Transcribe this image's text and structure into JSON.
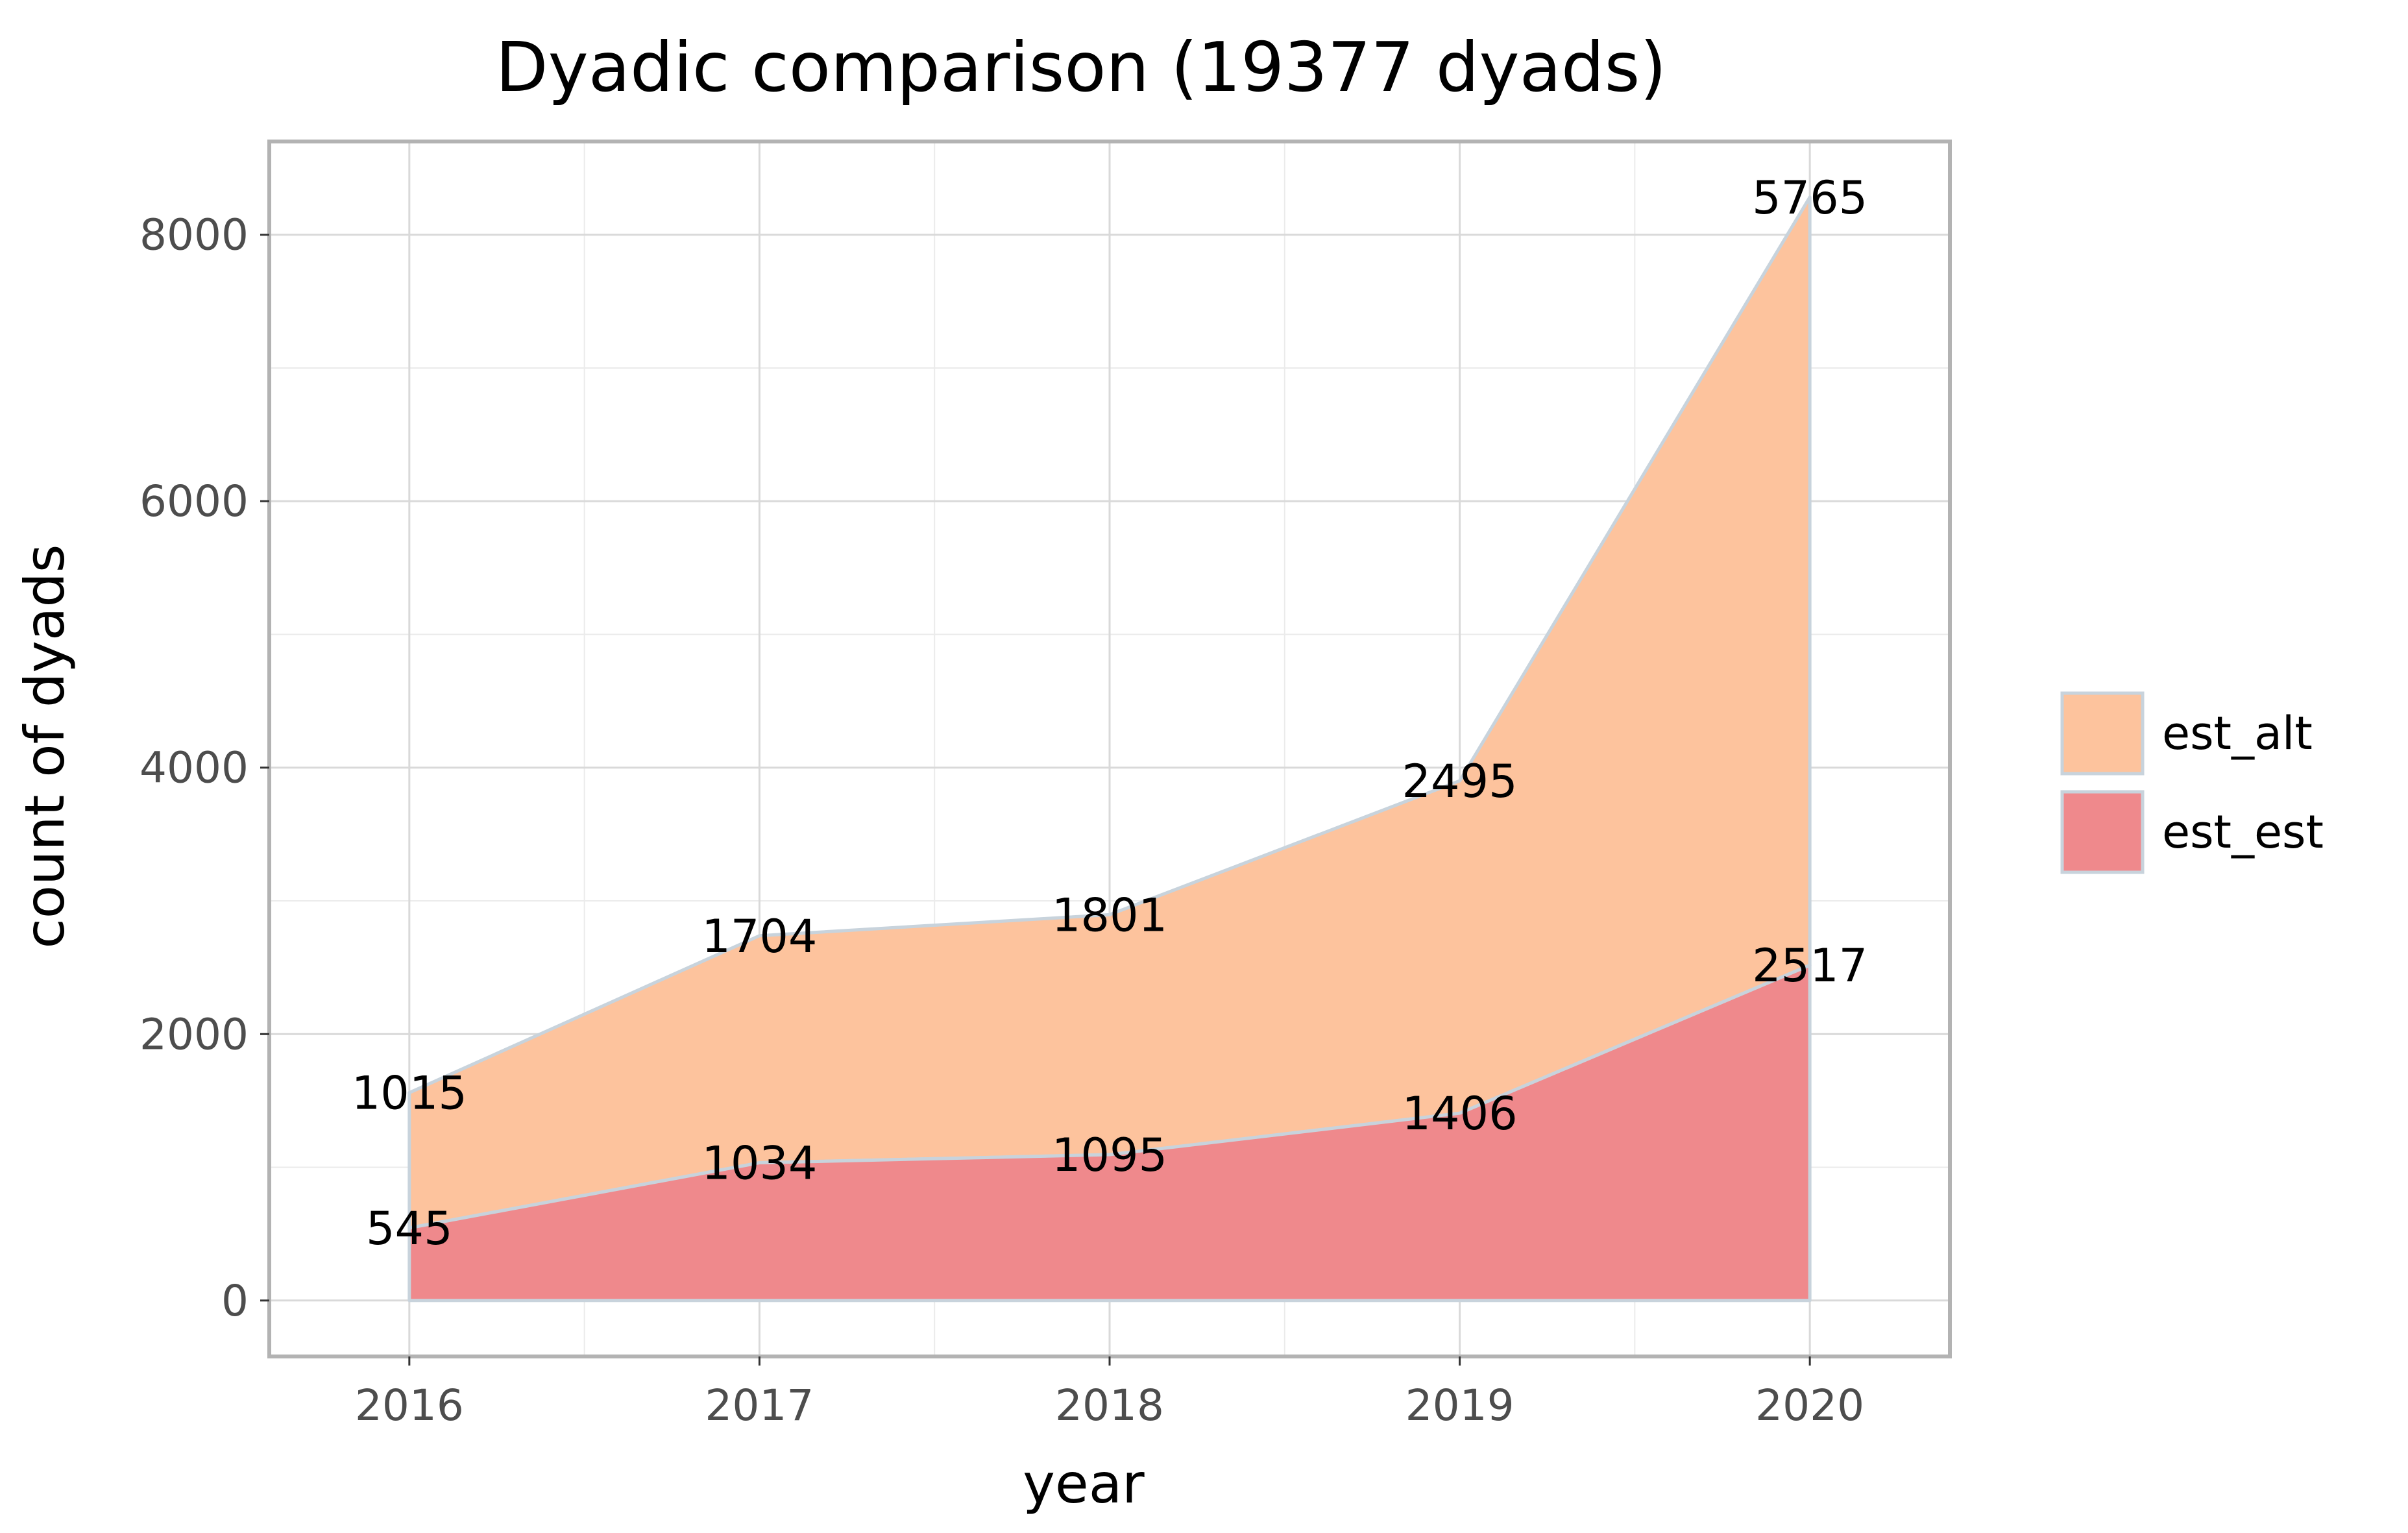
{
  "chart_data": {
    "type": "area",
    "stacked": true,
    "title": "Dyadic comparison (19377 dyads)",
    "xlabel": "year",
    "ylabel": "count of dyads",
    "x": [
      2016,
      2017,
      2018,
      2019,
      2020
    ],
    "x_tick_labels": [
      "2016",
      "2017",
      "2018",
      "2019",
      "2020"
    ],
    "xlim": [
      2015.6,
      2020.4
    ],
    "ylim": [
      -420,
      8700
    ],
    "y_ticks": [
      0,
      2000,
      4000,
      6000,
      8000
    ],
    "y_tick_labels": [
      "0",
      "2000",
      "4000",
      "6000",
      "8000"
    ],
    "grid": true,
    "legend_position": "right",
    "series": [
      {
        "name": "est_alt",
        "values": [
          1015,
          1704,
          1801,
          2495,
          5765
        ],
        "color": "#fdc39d"
      },
      {
        "name": "est_est",
        "values": [
          545,
          1034,
          1095,
          1406,
          2517
        ],
        "color": "#ef898c"
      }
    ],
    "stack_order_bottom_to_top": [
      "est_est",
      "est_alt"
    ],
    "line_color": "#c8d3dc"
  }
}
